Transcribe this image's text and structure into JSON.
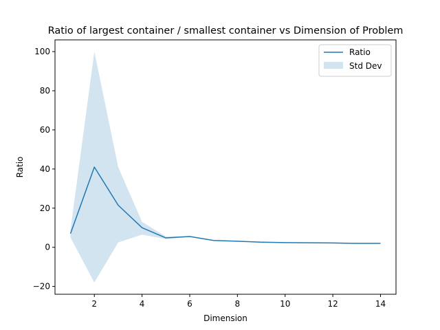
{
  "chart_data": {
    "type": "line",
    "title": "Ratio of largest container / smallest container vs Dimension of Problem",
    "xlabel": "Dimension",
    "ylabel": "Ratio",
    "xlim": [
      0.35,
      14.65
    ],
    "ylim": [
      -24,
      106
    ],
    "xticks": [
      2,
      4,
      6,
      8,
      10,
      12,
      14
    ],
    "yticks": [
      -20,
      0,
      20,
      40,
      60,
      80,
      100
    ],
    "grid": false,
    "legend_position": "top-right",
    "series": [
      {
        "name": "Ratio",
        "color": "#1f77b4",
        "x": [
          1,
          2,
          3,
          4,
          5,
          6,
          7,
          8,
          9,
          10,
          11,
          12,
          13,
          14
        ],
        "values": [
          7,
          41,
          21.5,
          10,
          4.8,
          5.5,
          3.5,
          3.1,
          2.6,
          2.4,
          2.3,
          2.2,
          2.0,
          2.0
        ]
      }
    ],
    "band": {
      "name": "Std Dev",
      "color": "#1f77b4",
      "opacity": 0.2,
      "x": [
        1,
        2,
        3,
        4,
        5,
        6,
        7,
        8,
        9,
        10,
        11,
        12,
        13,
        14
      ],
      "upper": [
        9,
        100,
        41,
        13,
        5.5,
        5.7,
        3.6,
        3.2,
        2.7,
        2.5,
        2.4,
        2.3,
        2.1,
        2.1
      ],
      "lower": [
        5,
        -18,
        2.5,
        6.5,
        4.2,
        5.3,
        3.4,
        3.0,
        2.5,
        2.3,
        2.2,
        2.1,
        1.9,
        1.9
      ]
    }
  }
}
